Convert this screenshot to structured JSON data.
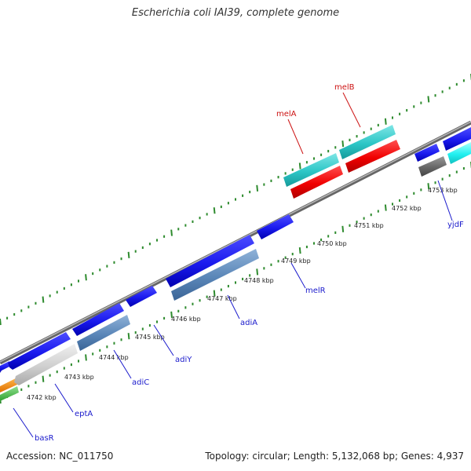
{
  "title": "Escherichia coli IAI39, complete genome",
  "accession_label": "Accession: NC_011750",
  "topology_label": "Topology: circular; Length: 5,132,068 bp; Genes: 4,937",
  "colors": {
    "gene_label": "#1a1acc",
    "highlight_label": "#cc1111",
    "backbone": "#888888",
    "ticks": "#2e8b2e"
  },
  "ruler_labels": [
    "4742 kbp",
    "4743 kbp",
    "4744 kbp",
    "4745 kbp",
    "4746 kbp",
    "4747 kbp",
    "4748 kbp",
    "4749 kbp",
    "4750 kbp",
    "4751 kbp",
    "4752 kbp",
    "4753 kbp"
  ],
  "genes": [
    {
      "name": "basR",
      "highlight": false
    },
    {
      "name": "eptA",
      "highlight": false
    },
    {
      "name": "adiC",
      "highlight": false
    },
    {
      "name": "adiY",
      "highlight": false
    },
    {
      "name": "adiA",
      "highlight": false
    },
    {
      "name": "melR",
      "highlight": false
    },
    {
      "name": "melA",
      "highlight": true
    },
    {
      "name": "melB",
      "highlight": true
    },
    {
      "name": "yjdF",
      "highlight": false
    }
  ]
}
